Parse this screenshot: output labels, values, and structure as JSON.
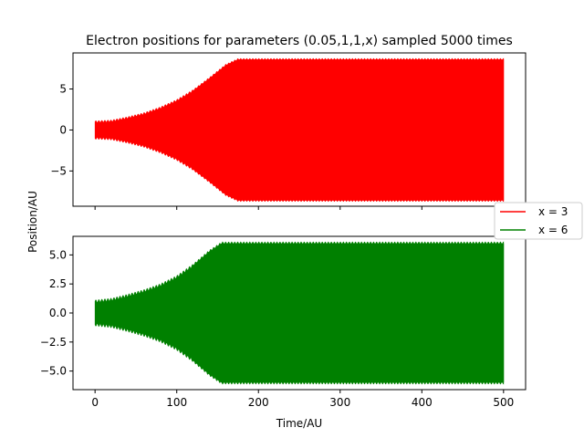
{
  "chart_data": {
    "type": "line",
    "title": "Electron positions for parameters (0.05,1,1,x) sampled 5000 times",
    "xlabel": "Time/AU",
    "ylabel": "Position/AU",
    "sharex": true,
    "xlim": [
      -27,
      527
    ],
    "xticks": [
      0,
      100,
      200,
      300,
      400,
      500
    ],
    "grid": false,
    "legend": {
      "location": "right",
      "entries": [
        "x = 3",
        "x = 6"
      ]
    },
    "series": [
      {
        "name": "x = 3",
        "color": "#ff0000",
        "subplot": "top",
        "ylim": [
          -9.3,
          9.4
        ],
        "yticks": [
          -5,
          0,
          5
        ],
        "envelope_points": [
          {
            "t": 0,
            "amp": 1.0
          },
          {
            "t": 20,
            "amp": 1.1
          },
          {
            "t": 40,
            "amp": 1.5
          },
          {
            "t": 60,
            "amp": 2.0
          },
          {
            "t": 80,
            "amp": 2.7
          },
          {
            "t": 100,
            "amp": 3.6
          },
          {
            "t": 120,
            "amp": 4.8
          },
          {
            "t": 140,
            "amp": 6.3
          },
          {
            "t": 160,
            "amp": 7.9
          },
          {
            "t": 175,
            "amp": 8.6
          },
          {
            "t": 500,
            "amp": 8.6
          }
        ],
        "beat_period": 13.2,
        "beat_depth": 3.3,
        "sampled_points": 5000
      },
      {
        "name": "x = 6",
        "color": "#008000",
        "subplot": "bottom",
        "ylim": [
          -6.6,
          6.6
        ],
        "yticks": [
          -5.0,
          -2.5,
          0.0,
          2.5,
          5.0
        ],
        "envelope_points": [
          {
            "t": 0,
            "amp": 1.0
          },
          {
            "t": 20,
            "amp": 1.15
          },
          {
            "t": 40,
            "amp": 1.5
          },
          {
            "t": 60,
            "amp": 1.9
          },
          {
            "t": 80,
            "amp": 2.4
          },
          {
            "t": 100,
            "amp": 3.1
          },
          {
            "t": 120,
            "amp": 4.1
          },
          {
            "t": 140,
            "amp": 5.3
          },
          {
            "t": 155,
            "amp": 6.0
          },
          {
            "t": 500,
            "amp": 6.0
          }
        ],
        "beat_period": 12.6,
        "beat_depth": 1.6,
        "sampled_points": 5000
      }
    ]
  }
}
